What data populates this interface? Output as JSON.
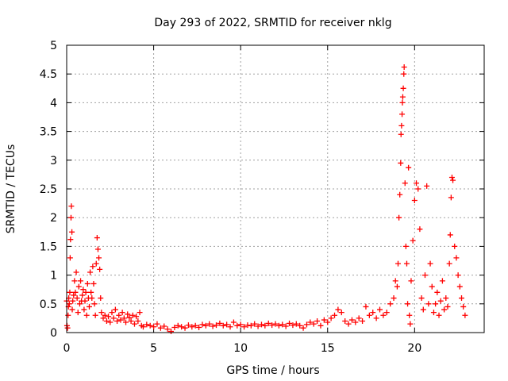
{
  "chart_data": {
    "type": "scatter",
    "title": "Day 293 of 2022, SRMTID for receiver nklg",
    "xlabel": "GPS time / hours",
    "ylabel": "SRMTID / TECUs",
    "xlim": [
      0,
      24
    ],
    "ylim": [
      0,
      5
    ],
    "xticks": [
      0,
      5,
      10,
      15,
      20
    ],
    "yticks": [
      0,
      0.5,
      1,
      1.5,
      2,
      2.5,
      3,
      3.5,
      4,
      4.5,
      5
    ],
    "grid": true,
    "marker": "+",
    "color": "#ff0000",
    "series": [
      {
        "name": "SRMTID",
        "points": [
          [
            0.0,
            0.55
          ],
          [
            0.02,
            0.12
          ],
          [
            0.05,
            0.08
          ],
          [
            0.08,
            0.3
          ],
          [
            0.1,
            0.45
          ],
          [
            0.12,
            0.6
          ],
          [
            0.15,
            0.5
          ],
          [
            0.18,
            0.7
          ],
          [
            0.2,
            1.3
          ],
          [
            0.22,
            1.62
          ],
          [
            0.25,
            2.0
          ],
          [
            0.27,
            2.2
          ],
          [
            0.3,
            1.75
          ],
          [
            0.32,
            0.4
          ],
          [
            0.35,
            0.55
          ],
          [
            0.4,
            0.65
          ],
          [
            0.45,
            0.9
          ],
          [
            0.5,
            0.7
          ],
          [
            0.55,
            1.05
          ],
          [
            0.6,
            0.6
          ],
          [
            0.65,
            0.35
          ],
          [
            0.7,
            0.8
          ],
          [
            0.75,
            0.5
          ],
          [
            0.8,
            0.9
          ],
          [
            0.85,
            0.55
          ],
          [
            0.9,
            0.65
          ],
          [
            0.95,
            0.75
          ],
          [
            1.0,
            0.4
          ],
          [
            1.05,
            0.55
          ],
          [
            1.1,
            0.7
          ],
          [
            1.15,
            0.3
          ],
          [
            1.2,
            0.85
          ],
          [
            1.25,
            0.6
          ],
          [
            1.3,
            0.45
          ],
          [
            1.35,
            1.05
          ],
          [
            1.4,
            0.7
          ],
          [
            1.45,
            0.6
          ],
          [
            1.5,
            1.15
          ],
          [
            1.55,
            0.85
          ],
          [
            1.6,
            0.5
          ],
          [
            1.65,
            0.3
          ],
          [
            1.7,
            1.2
          ],
          [
            1.75,
            1.65
          ],
          [
            1.8,
            1.45
          ],
          [
            1.85,
            1.3
          ],
          [
            1.9,
            1.1
          ],
          [
            1.95,
            0.6
          ],
          [
            2.0,
            0.35
          ],
          [
            2.1,
            0.25
          ],
          [
            2.2,
            0.3
          ],
          [
            2.3,
            0.2
          ],
          [
            2.4,
            0.28
          ],
          [
            2.5,
            0.18
          ],
          [
            2.6,
            0.35
          ],
          [
            2.7,
            0.25
          ],
          [
            2.8,
            0.4
          ],
          [
            2.9,
            0.2
          ],
          [
            3.0,
            0.3
          ],
          [
            3.1,
            0.22
          ],
          [
            3.2,
            0.35
          ],
          [
            3.3,
            0.25
          ],
          [
            3.4,
            0.18
          ],
          [
            3.5,
            0.32
          ],
          [
            3.6,
            0.26
          ],
          [
            3.7,
            0.2
          ],
          [
            3.8,
            0.3
          ],
          [
            3.9,
            0.15
          ],
          [
            4.0,
            0.28
          ],
          [
            4.1,
            0.2
          ],
          [
            4.2,
            0.35
          ],
          [
            4.3,
            0.12
          ],
          [
            4.4,
            0.1
          ],
          [
            4.6,
            0.14
          ],
          [
            4.8,
            0.12
          ],
          [
            5.0,
            0.1
          ],
          [
            5.2,
            0.15
          ],
          [
            5.4,
            0.08
          ],
          [
            5.6,
            0.11
          ],
          [
            5.8,
            0.06
          ],
          [
            6.0,
            0.02
          ],
          [
            6.2,
            0.09
          ],
          [
            6.4,
            0.12
          ],
          [
            6.6,
            0.1
          ],
          [
            6.8,
            0.08
          ],
          [
            7.0,
            0.13
          ],
          [
            7.2,
            0.1
          ],
          [
            7.4,
            0.12
          ],
          [
            7.6,
            0.09
          ],
          [
            7.8,
            0.14
          ],
          [
            8.0,
            0.12
          ],
          [
            8.2,
            0.15
          ],
          [
            8.4,
            0.11
          ],
          [
            8.6,
            0.13
          ],
          [
            8.8,
            0.16
          ],
          [
            9.0,
            0.12
          ],
          [
            9.2,
            0.14
          ],
          [
            9.4,
            0.1
          ],
          [
            9.6,
            0.18
          ],
          [
            9.8,
            0.12
          ],
          [
            10.0,
            0.14
          ],
          [
            10.2,
            0.1
          ],
          [
            10.4,
            0.13
          ],
          [
            10.6,
            0.12
          ],
          [
            10.8,
            0.15
          ],
          [
            11.0,
            0.11
          ],
          [
            11.2,
            0.14
          ],
          [
            11.4,
            0.12
          ],
          [
            11.6,
            0.16
          ],
          [
            11.8,
            0.13
          ],
          [
            12.0,
            0.15
          ],
          [
            12.2,
            0.12
          ],
          [
            12.4,
            0.14
          ],
          [
            12.6,
            0.11
          ],
          [
            12.8,
            0.16
          ],
          [
            13.0,
            0.13
          ],
          [
            13.2,
            0.15
          ],
          [
            13.4,
            0.12
          ],
          [
            13.6,
            0.08
          ],
          [
            13.8,
            0.14
          ],
          [
            14.0,
            0.18
          ],
          [
            14.2,
            0.15
          ],
          [
            14.4,
            0.2
          ],
          [
            14.6,
            0.12
          ],
          [
            14.8,
            0.22
          ],
          [
            15.0,
            0.18
          ],
          [
            15.2,
            0.25
          ],
          [
            15.4,
            0.3
          ],
          [
            15.6,
            0.4
          ],
          [
            15.8,
            0.35
          ],
          [
            16.0,
            0.2
          ],
          [
            16.2,
            0.15
          ],
          [
            16.4,
            0.22
          ],
          [
            16.6,
            0.18
          ],
          [
            16.8,
            0.25
          ],
          [
            17.0,
            0.2
          ],
          [
            17.2,
            0.45
          ],
          [
            17.4,
            0.3
          ],
          [
            17.6,
            0.35
          ],
          [
            17.8,
            0.25
          ],
          [
            18.0,
            0.4
          ],
          [
            18.2,
            0.3
          ],
          [
            18.4,
            0.35
          ],
          [
            18.6,
            0.5
          ],
          [
            18.8,
            0.6
          ],
          [
            18.9,
            0.9
          ],
          [
            19.0,
            0.8
          ],
          [
            19.05,
            1.2
          ],
          [
            19.1,
            2.0
          ],
          [
            19.15,
            2.4
          ],
          [
            19.2,
            2.95
          ],
          [
            19.22,
            3.45
          ],
          [
            19.25,
            3.6
          ],
          [
            19.28,
            3.8
          ],
          [
            19.3,
            4.0
          ],
          [
            19.32,
            4.1
          ],
          [
            19.35,
            4.25
          ],
          [
            19.38,
            4.5
          ],
          [
            19.4,
            4.62
          ],
          [
            19.45,
            2.6
          ],
          [
            19.5,
            1.5
          ],
          [
            19.55,
            1.2
          ],
          [
            19.6,
            0.5
          ],
          [
            19.65,
            2.87
          ],
          [
            19.7,
            0.3
          ],
          [
            19.75,
            0.15
          ],
          [
            19.8,
            0.9
          ],
          [
            19.9,
            1.6
          ],
          [
            20.0,
            2.3
          ],
          [
            20.1,
            2.6
          ],
          [
            20.2,
            2.5
          ],
          [
            20.3,
            1.8
          ],
          [
            20.4,
            0.6
          ],
          [
            20.5,
            0.4
          ],
          [
            20.6,
            1.0
          ],
          [
            20.7,
            2.55
          ],
          [
            20.8,
            0.5
          ],
          [
            20.9,
            1.2
          ],
          [
            21.0,
            0.8
          ],
          [
            21.1,
            0.35
          ],
          [
            21.2,
            0.5
          ],
          [
            21.3,
            0.7
          ],
          [
            21.4,
            0.3
          ],
          [
            21.5,
            0.55
          ],
          [
            21.6,
            0.9
          ],
          [
            21.7,
            0.4
          ],
          [
            21.8,
            0.6
          ],
          [
            21.9,
            0.45
          ],
          [
            22.0,
            1.2
          ],
          [
            22.05,
            1.7
          ],
          [
            22.1,
            2.35
          ],
          [
            22.15,
            2.7
          ],
          [
            22.2,
            2.65
          ],
          [
            22.3,
            1.5
          ],
          [
            22.4,
            1.3
          ],
          [
            22.5,
            1.0
          ],
          [
            22.6,
            0.8
          ],
          [
            22.7,
            0.6
          ],
          [
            22.8,
            0.45
          ],
          [
            22.9,
            0.3
          ]
        ]
      }
    ]
  }
}
